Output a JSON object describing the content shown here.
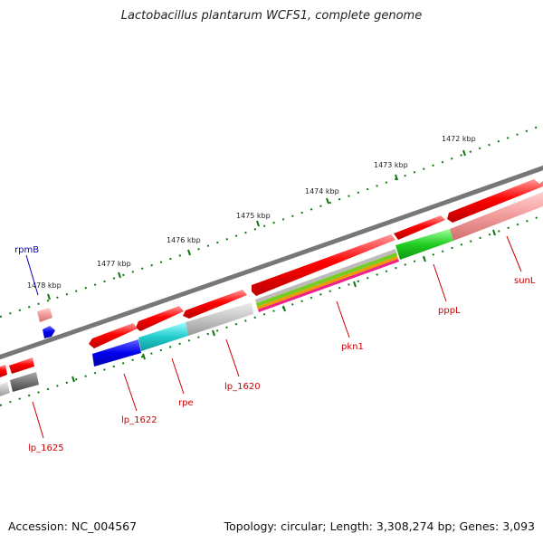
{
  "title": "Lactobacillus plantarum WCFS1, complete genome",
  "footer": {
    "accession": "Accession: NC_004567",
    "topology": "Topology: circular; Length: 3,308,274 bp; Genes: 3,093"
  },
  "position_ticks": [
    "1472 kbp",
    "1473 kbp",
    "1474 kbp",
    "1475 kbp",
    "1476 kbp",
    "1477 kbp",
    "1478 kbp"
  ],
  "gene_labels": {
    "rpmB": "rpmB",
    "sunL": "sunL",
    "pppL": "pppL",
    "pkn1": "pkn1",
    "lp_1620": "lp_1620",
    "rpe": "rpe",
    "lp_1622": "lp_1622",
    "lp_1625": "lp_1625"
  },
  "colors": {
    "forward_strand": "#ee0000",
    "backbone": "#777777",
    "tick_green": "#117711",
    "label_red": "#cc0000",
    "label_blue": "#0000bb"
  }
}
